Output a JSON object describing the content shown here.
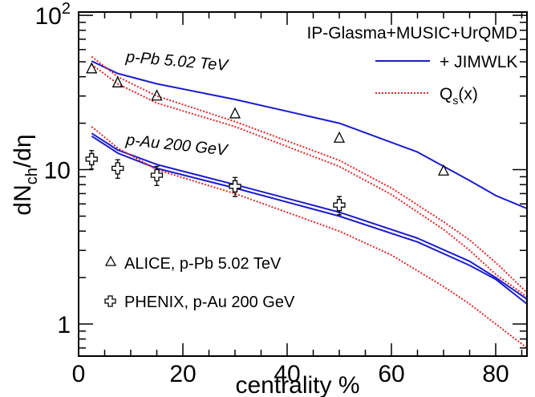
{
  "chart_data": {
    "type": "line",
    "xlabel": "centrality %",
    "ylabel_main": "dN",
    "ylabel_sub": "ch",
    "ylabel_tail": "/dη",
    "xlim": [
      0,
      86
    ],
    "ylim": [
      0.62,
      105
    ],
    "yscale": "log",
    "grid": false,
    "x_ticks": [
      {
        "value": 0,
        "label": "0"
      },
      {
        "value": 20,
        "label": "20"
      },
      {
        "value": 40,
        "label": "40"
      },
      {
        "value": 60,
        "label": "60"
      },
      {
        "value": 80,
        "label": "80"
      }
    ],
    "y_ticks": [
      {
        "value": 1,
        "base": "1",
        "exp": ""
      },
      {
        "value": 10,
        "base": "10",
        "exp": ""
      },
      {
        "value": 100,
        "base": "10",
        "exp": "2"
      }
    ],
    "model_label": "IP-Glasma+MUSIC+UrQMD",
    "legend": [
      {
        "label": "+ JIMWLK",
        "style": "solid",
        "color": "#1c1ccc"
      },
      {
        "label_main": "Q",
        "label_sub": "s",
        "label_tail": "(x)",
        "style": "dotted",
        "color": "#e0282a"
      }
    ],
    "annotations": [
      {
        "text": "p-Pb 5.02 TeV",
        "x": 9,
        "y": 50,
        "rotate": 5
      },
      {
        "text": "p-Au 200 GeV",
        "x": 9,
        "y": 14.5,
        "rotate": 6
      }
    ],
    "series": [
      {
        "style": "solid",
        "color": "#1c1ccc",
        "x": [
          2.5,
          7.5,
          15,
          30,
          50,
          65,
          75,
          80,
          86
        ],
        "y": [
          50.5,
          42,
          36,
          28.5,
          20,
          13,
          8.5,
          6.8,
          5.6
        ]
      },
      {
        "style": "solid",
        "color": "#1c1ccc",
        "x": [
          2.5,
          7.5,
          15,
          30,
          50,
          65,
          75,
          80,
          86
        ],
        "y": [
          16.5,
          12.8,
          10.2,
          7.6,
          5.0,
          3.4,
          2.4,
          1.95,
          1.35
        ]
      },
      {
        "style": "solid",
        "color": "#1c1ccc",
        "x": [
          2.5,
          7.5,
          15,
          30,
          50,
          65,
          75,
          80,
          86
        ],
        "y": [
          17.2,
          13.4,
          10.8,
          8.0,
          5.3,
          3.6,
          2.55,
          2.0,
          1.45
        ]
      },
      {
        "style": "dotted",
        "color": "#e0282a",
        "x": [
          2.5,
          7.5,
          15,
          30,
          50,
          60,
          70,
          75,
          80,
          86
        ],
        "y": [
          54,
          40,
          30,
          20.5,
          11.5,
          7.6,
          4.6,
          3.5,
          2.5,
          1.6
        ]
      },
      {
        "style": "dotted",
        "color": "#e0282a",
        "x": [
          2.5,
          7.5,
          15,
          30,
          50,
          60,
          70,
          75,
          80,
          86
        ],
        "y": [
          48,
          36,
          27,
          19.0,
          10.5,
          6.9,
          4.1,
          3.0,
          2.1,
          1.5
        ]
      },
      {
        "style": "dotted",
        "color": "#e0282a",
        "x": [
          2.5,
          7.5,
          15,
          30,
          50,
          60,
          70,
          75,
          80,
          86
        ],
        "y": [
          19,
          13.8,
          10.0,
          7.0,
          4.0,
          2.8,
          1.75,
          1.35,
          1.0,
          0.7
        ]
      }
    ],
    "data_sets": [
      {
        "name": "ALICE, p-Pb 5.02 TeV",
        "marker": "triangle",
        "points": [
          {
            "x": 2.5,
            "y": 45
          },
          {
            "x": 7.5,
            "y": 36.5
          },
          {
            "x": 15,
            "y": 30
          },
          {
            "x": 30,
            "y": 23
          },
          {
            "x": 50,
            "y": 16
          },
          {
            "x": 70,
            "y": 9.8
          }
        ]
      },
      {
        "name": "PHENIX, p-Au 200 GeV",
        "marker": "cross",
        "points": [
          {
            "x": 2.5,
            "y": 11.7,
            "err": 1.6
          },
          {
            "x": 7.5,
            "y": 10.2,
            "err": 1.4
          },
          {
            "x": 15,
            "y": 9.2,
            "err": 1.3
          },
          {
            "x": 30,
            "y": 7.8,
            "err": 1.1
          },
          {
            "x": 50,
            "y": 5.9,
            "err": 0.8
          }
        ]
      }
    ]
  }
}
